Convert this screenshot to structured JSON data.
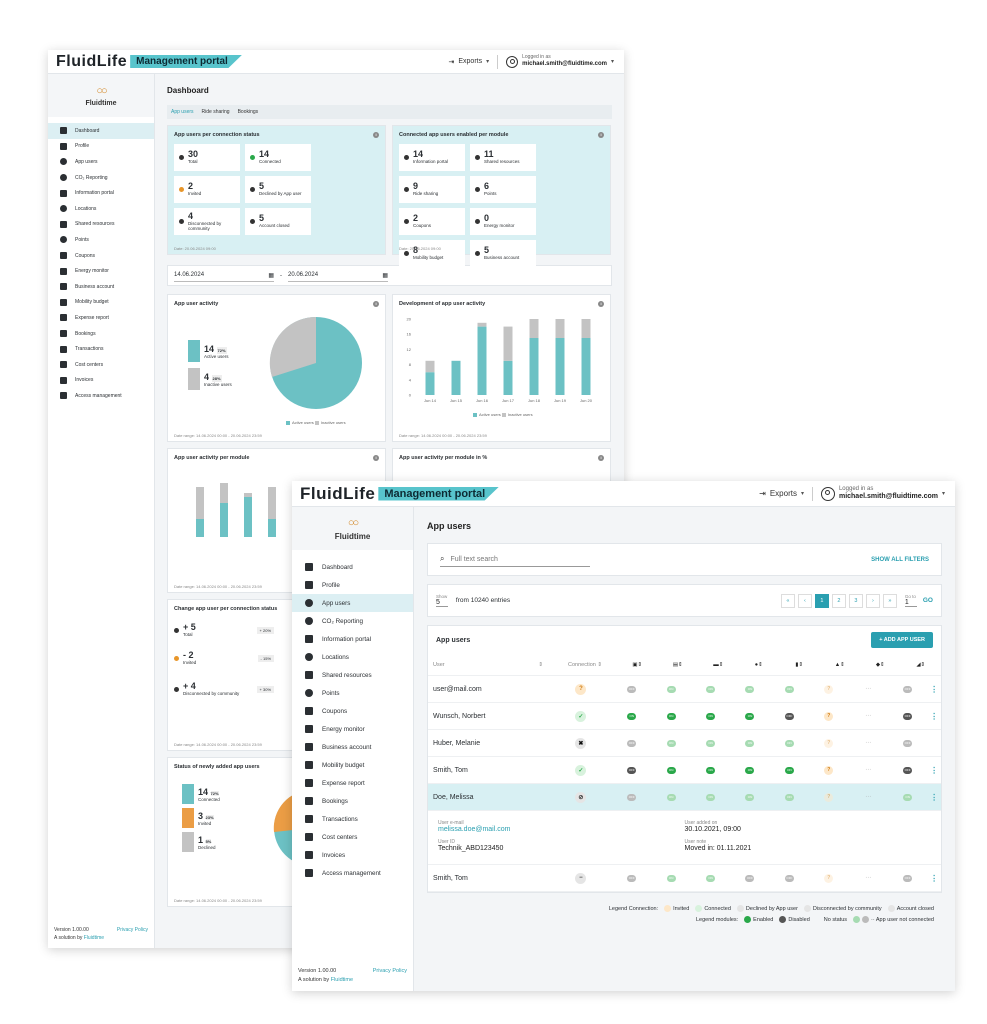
{
  "brand": {
    "logo": "FluidLife",
    "portal": "Management portal",
    "company": "Fluidtime"
  },
  "topbar": {
    "exports": "Exports",
    "logged_in_as": "Logged in as",
    "email": "michael.smith@fluidtime.com"
  },
  "sidebar": {
    "items": [
      "Dashboard",
      "Profile",
      "App users",
      "CO₂ Reporting",
      "Information portal",
      "Locations",
      "Shared resources",
      "Points",
      "Coupons",
      "Energy monitor",
      "Business account",
      "Mobility budget",
      "Expense report",
      "Bookings",
      "Transactions",
      "Cost centers",
      "Invoices",
      "Access management"
    ],
    "version": "Version 1.00.00",
    "privacy": "Privacy Policy",
    "solution_by": "A solution by",
    "solution_company": "Fluidtime"
  },
  "dashboard": {
    "title": "Dashboard",
    "tabs": [
      "App users",
      "Ride sharing",
      "Bookings"
    ],
    "conn_card": {
      "title": "App users per connection status",
      "stats": [
        {
          "num": "30",
          "label": "Total"
        },
        {
          "num": "14",
          "label": "Connected"
        },
        {
          "num": "2",
          "label": "Invited"
        },
        {
          "num": "5",
          "label": "Declined by App user"
        },
        {
          "num": "4",
          "label": "Disconnected by community"
        },
        {
          "num": "5",
          "label": "Account closed"
        }
      ],
      "date": "Date: 20.06.2024 09:00"
    },
    "module_card": {
      "title": "Connected app users enabled per module",
      "stats": [
        {
          "num": "14",
          "label": "Information portal"
        },
        {
          "num": "11",
          "label": "Shared resources"
        },
        {
          "num": "9",
          "label": "Ride sharing"
        },
        {
          "num": "6",
          "label": "Points"
        },
        {
          "num": "2",
          "label": "Coupons"
        },
        {
          "num": "0",
          "label": "Energy monitor"
        },
        {
          "num": "8",
          "label": "Mobility budget"
        },
        {
          "num": "5",
          "label": "Business account"
        }
      ],
      "date": "Date: 20.06.2024 09:00"
    },
    "date_from": "14.06.2024",
    "date_to": "20.06.2024",
    "activity": {
      "title": "App user activity",
      "active_num": "14",
      "active_pct": "72%",
      "active_label": "Active users",
      "inactive_num": "4",
      "inactive_pct": "28%",
      "inactive_label": "Inactive users",
      "range": "Date range: 14.06.2024 00:00 - 20.06.2024 23:59"
    },
    "development": {
      "title": "Development of app user activity",
      "range": "Date range: 14.06.2024 00:00 - 20.06.2024 23:59"
    },
    "per_module_title": "App user activity per module",
    "per_module_pct_title": "App user activity per module in %",
    "change": {
      "title": "Change app user per connection status",
      "items": [
        {
          "num": "+ 5",
          "label": "Total",
          "pct": "+ 20%"
        },
        {
          "num": "- 2",
          "label": "Invited",
          "pct": "- 15%"
        },
        {
          "num": "+ 4",
          "label": "Disconnected by community",
          "pct": "+ 30%"
        }
      ],
      "range": "Date range: 14.06.2024 00:00 - 20.06.2024 23:59"
    },
    "new_users": {
      "title": "Status of newly added app users",
      "items": [
        {
          "num": "14",
          "pct": "72%",
          "label": "Connected"
        },
        {
          "num": "3",
          "pct": "23%",
          "label": "Invited"
        },
        {
          "num": "1",
          "pct": "5%",
          "label": "Declined"
        }
      ],
      "range": "Date range: 14.06.2024 00:00 - 20.06.2024 23:59"
    },
    "legend_active": "Active users",
    "legend_inactive": "Inactive users"
  },
  "chart_data": {
    "type": "bar",
    "categories": [
      "Jun 14",
      "Jun 15",
      "Jun 16",
      "Jun 17",
      "Jun 18",
      "Jun 19",
      "Jun 20"
    ],
    "series": [
      {
        "name": "Active users",
        "values": [
          6,
          9,
          18,
          9,
          15,
          15,
          15
        ]
      },
      {
        "name": "Inactive users",
        "values": [
          3,
          0,
          1,
          9,
          5,
          5,
          5
        ]
      }
    ],
    "title": "Development of app user activity",
    "ylim": [
      0,
      20
    ],
    "yticks": [
      0,
      4,
      8,
      12,
      16,
      20
    ],
    "colors": {
      "active": "#6cc1c4",
      "inactive": "#c3c3c3"
    }
  },
  "appusers": {
    "title": "App users",
    "search_placeholder": "Full text search",
    "show_all_filters": "SHOW ALL FILTERS",
    "show_label": "Show",
    "show_value": "5",
    "entries": "from 10240 entries",
    "pages": [
      "«",
      "‹",
      "1",
      "2",
      "3",
      "›",
      "»"
    ],
    "goto_label": "Go to",
    "goto_value": "1",
    "go": "GO",
    "table_title": "App users",
    "add_button": "+ ADD APP USER",
    "col_user": "User",
    "col_connection": "Connection",
    "rows": [
      {
        "user": "user@mail.com",
        "conn": "inv",
        "mods": [
          "f-off",
          "f-on",
          "f-on",
          "f-on",
          "f-on",
          "q-f",
          "na",
          "f-off"
        ]
      },
      {
        "user": "Wunsch, Norbert",
        "conn": "con",
        "mods": [
          "on",
          "on",
          "on",
          "on",
          "off",
          "q",
          "na",
          "off"
        ]
      },
      {
        "user": "Huber, Melanie",
        "conn": "acl",
        "mods": [
          "f-off",
          "f-on",
          "f-on",
          "f-on",
          "f-on",
          "q-f",
          "na",
          "f-off"
        ]
      },
      {
        "user": "Smith, Tom",
        "conn": "con",
        "mods": [
          "off",
          "on",
          "on",
          "on",
          "on",
          "q",
          "na",
          "off"
        ]
      },
      {
        "user": "Doe, Melissa",
        "conn": "dec",
        "mods": [
          "f-off",
          "f-on",
          "f-on",
          "f-on",
          "f-on",
          "q-f",
          "na",
          "f-on"
        ]
      },
      {
        "user": "Smith, Tom",
        "conn": "dis",
        "mods": [
          "f-off",
          "f-on",
          "f-on",
          "f-off",
          "f-off",
          "q-f",
          "na",
          "f-off"
        ]
      }
    ],
    "detail": {
      "email_label": "User e-mail",
      "email": "melissa.doe@mail.com",
      "added_label": "User added on",
      "added": "30.10.2021, 09:00",
      "id_label": "User ID",
      "id": "Technik_ABD123450",
      "note_label": "User note",
      "note": "Moved in: 01.11.2021"
    },
    "legend_conn_label": "Legend Connection:",
    "legend_conn": [
      "Invited",
      "Connected",
      "Declined by App user",
      "Disconnected by community",
      "Account closed"
    ],
    "legend_mod_label": "Legend modules:",
    "legend_enabled": "Enabled",
    "legend_disabled": "Disabled",
    "legend_nostatus": "No status",
    "legend_notconnected": "App user not connected",
    "pill_on": "ON",
    "pill_off": "OFF"
  }
}
